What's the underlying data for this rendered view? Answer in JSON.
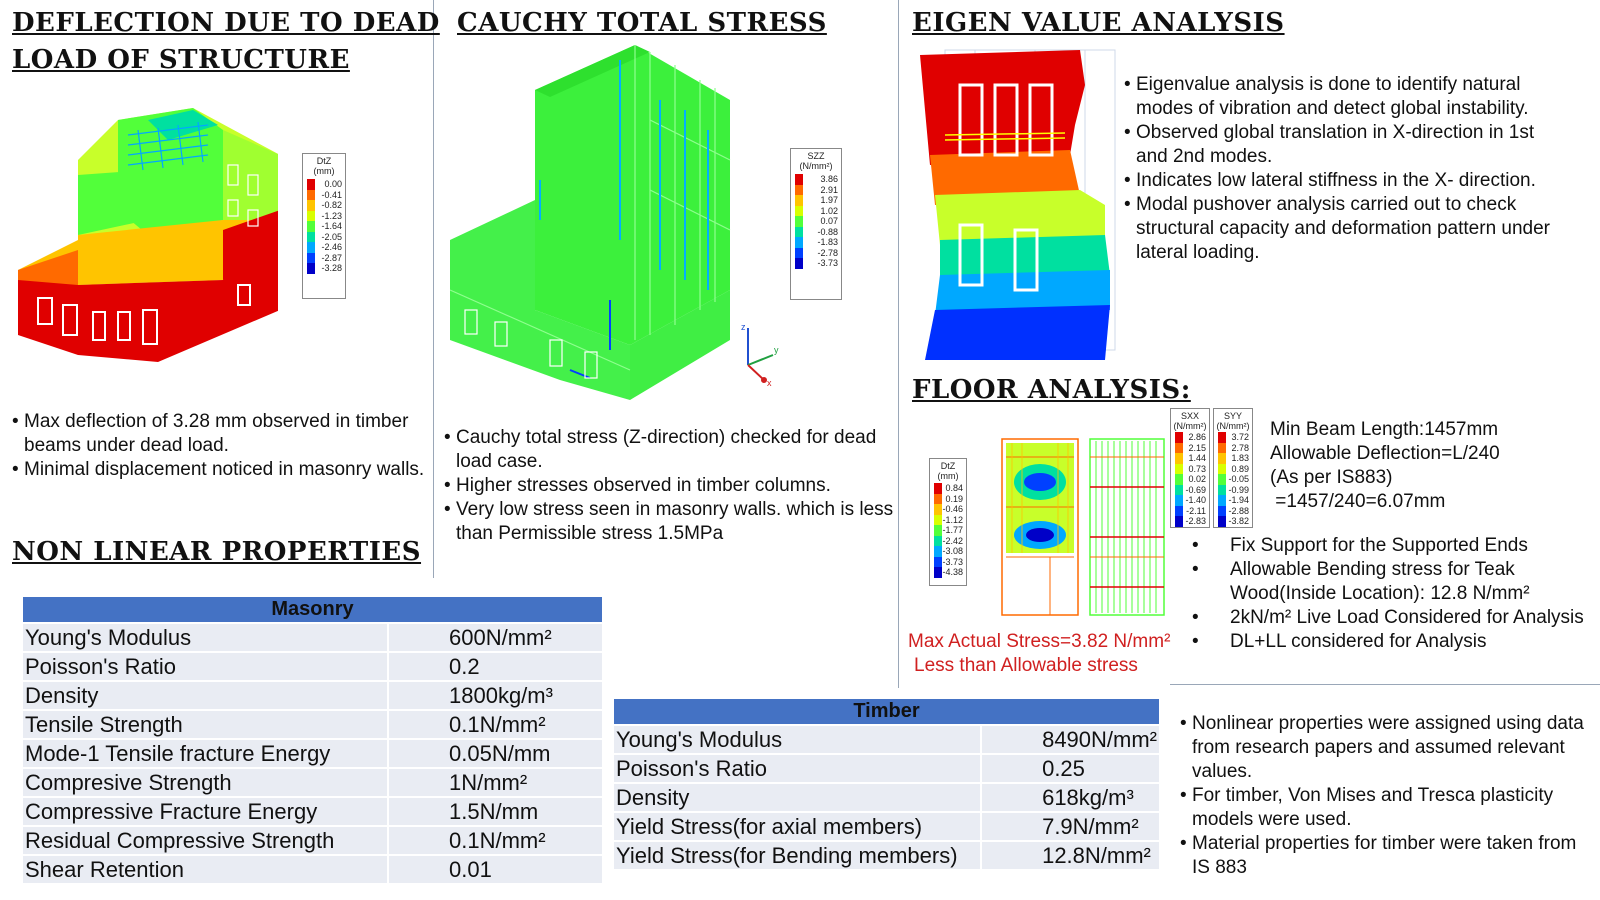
{
  "col1": {
    "heading": [
      "DEFLECTION DUE TO DEAD",
      "LOAD OF STRUCTURE"
    ],
    "legend": {
      "title": [
        "DtZ",
        "(mm)"
      ],
      "values": [
        "0.00",
        "-0.41",
        "-0.82",
        "-1.23",
        "-1.64",
        "-2.05",
        "-2.46",
        "-2.87",
        "-3.28"
      ]
    },
    "bullets": [
      "Max deflection of 3.28 mm observed in timber beams under dead load.",
      "Minimal displacement noticed in masonry walls."
    ],
    "nonlinear_heading": "NON LINEAR PROPERTIES"
  },
  "col2": {
    "heading": "CAUCHY TOTAL STRESS",
    "legend": {
      "title": [
        "SZZ",
        "(N/mm²)"
      ],
      "values": [
        "3.86",
        "2.91",
        "1.97",
        "1.02",
        "0.07",
        "-0.88",
        "-1.83",
        "-2.78",
        "-3.73"
      ]
    },
    "axes": {
      "z": "z",
      "y": "y",
      "x": "x"
    },
    "bullets": [
      "Cauchy total stress (Z-direction) checked for dead load case.",
      "Higher stresses observed in timber     columns.",
      "Very low stress seen in masonry walls. which is  less than Permissible stress 1.5MPa"
    ]
  },
  "col3": {
    "heading": "EIGEN VALUE ANALYSIS",
    "bullets": [
      "Eigenvalue analysis is done to identify natural modes of vibration and detect global instability.",
      "Observed global translation in X-direction in  1st and 2nd modes.",
      "Indicates low lateral stiffness in the X-  direction.",
      "Modal pushover analysis carried out to check structural capacity and deformation pattern under lateral loading."
    ],
    "floor_heading": "FLOOR ANALYSIS:",
    "legend_dtz": {
      "title": [
        "DtZ",
        "(mm)"
      ],
      "values": [
        "0.84",
        "0.19",
        "-0.46",
        "-1.12",
        "-1.77",
        "-2.42",
        "-3.08",
        "-3.73",
        "-4.38"
      ]
    },
    "legend_sxx": {
      "title": [
        "SXX",
        "(N/mm²)"
      ],
      "values": [
        "2.86",
        "2.15",
        "1.44",
        "0.73",
        "0.02",
        "-0.69",
        "-1.40",
        "-2.11",
        "-2.83"
      ]
    },
    "legend_syy": {
      "title": [
        "SYY",
        "(N/mm²)"
      ],
      "values": [
        "3.72",
        "2.78",
        "1.83",
        "0.89",
        "-0.05",
        "-0.99",
        "-1.94",
        "-2.88",
        "-3.82"
      ]
    },
    "beam_info": [
      "Min Beam Length:1457mm",
      "Allowable Deflection=L/240",
      "(As per IS883)",
      " =1457/240=6.07mm"
    ],
    "floor_bullets": [
      "Fix Support for the Supported Ends",
      "Allowable Bending stress for Teak Wood(Inside Location): 12.8 N/mm²",
      "2kN/m² Live Load Considered for Analysis",
      "DL+LL considered for Analysis"
    ],
    "stress_note": [
      "Max Actual Stress=3.82 N/mm²",
      "Less than Allowable stress"
    ],
    "nonlinear_bullets": [
      "Nonlinear properties were assigned using data from research papers and assumed relevant values.",
      "For timber, Von Mises and Tresca plasticity models were used.",
      "Material properties for timber were taken from IS 883"
    ]
  },
  "masonry_table": {
    "title": "Masonry",
    "rows": [
      {
        "prop": "Young's Modulus",
        "val": "600N/mm²"
      },
      {
        "prop": "Poisson's Ratio",
        "val": "0.2"
      },
      {
        "prop": "Density",
        "val": "1800kg/m³"
      },
      {
        "prop": "Tensile Strength",
        "val": "0.1N/mm²"
      },
      {
        "prop": "Mode-1 Tensile fracture Energy",
        "val": "0.05N/mm"
      },
      {
        "prop": "Compresive Strength",
        "val": "1N/mm²"
      },
      {
        "prop": "Compressive Fracture Energy",
        "val": "1.5N/mm"
      },
      {
        "prop": "Residual Compressive Strength",
        "val": "0.1N/mm²"
      },
      {
        "prop": "Shear Retention",
        "val": "0.01"
      }
    ]
  },
  "timber_table": {
    "title": "Timber",
    "rows": [
      {
        "prop": "Young's Modulus",
        "val": "8490N/mm²"
      },
      {
        "prop": "Poisson's Ratio",
        "val": "0.25"
      },
      {
        "prop": "Density",
        "val": "618kg/m³"
      },
      {
        "prop": "Yield Stress(for axial members)",
        "val": "7.9N/mm²"
      },
      {
        "prop": "Yield Stress(for Bending members)",
        "val": "12.8N/mm²"
      }
    ]
  },
  "colors": {
    "table_header": "#4472c4",
    "table_cell": "#e9ecf3",
    "contour": [
      "#e00000",
      "#ff6a00",
      "#ffc400",
      "#d8ff00",
      "#52ff3a",
      "#00e0a0",
      "#00a8ff",
      "#0040ff",
      "#0000c8"
    ],
    "note_red": "#d02020"
  }
}
